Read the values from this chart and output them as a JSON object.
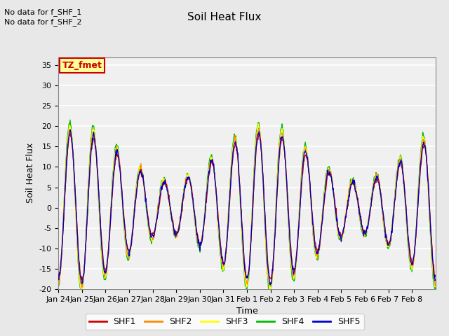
{
  "title": "Soil Heat Flux",
  "xlabel": "Time",
  "ylabel": "Soil Heat Flux",
  "ylim": [
    -20,
    37
  ],
  "yticks": [
    -20,
    -15,
    -10,
    -5,
    0,
    5,
    10,
    15,
    20,
    25,
    30,
    35
  ],
  "xtick_labels": [
    "Jan 24",
    "Jan 25",
    "Jan 26",
    "Jan 27",
    "Jan 28",
    "Jan 29",
    "Jan 30",
    "Jan 31",
    "Feb 1",
    "Feb 2",
    "Feb 3",
    "Feb 4",
    "Feb 5",
    "Feb 6",
    "Feb 7",
    "Feb 8"
  ],
  "no_data_text": [
    "No data for f_SHF_1",
    "No data for f_SHF_2"
  ],
  "annotation_box": "TZ_fmet",
  "annotation_box_color": "#FFFF99",
  "annotation_box_border": "#CC0000",
  "annotation_text_color": "#CC0000",
  "legend_entries": [
    "SHF1",
    "SHF2",
    "SHF3",
    "SHF4",
    "SHF5"
  ],
  "line_colors": [
    "#CC0000",
    "#FF8800",
    "#FFFF00",
    "#00BB00",
    "#0000CC"
  ],
  "background_color": "#E8E8E8",
  "plot_bg_color": "#F0F0F0",
  "grid_color": "#FFFFFF",
  "n_days": 16,
  "seed": 42
}
